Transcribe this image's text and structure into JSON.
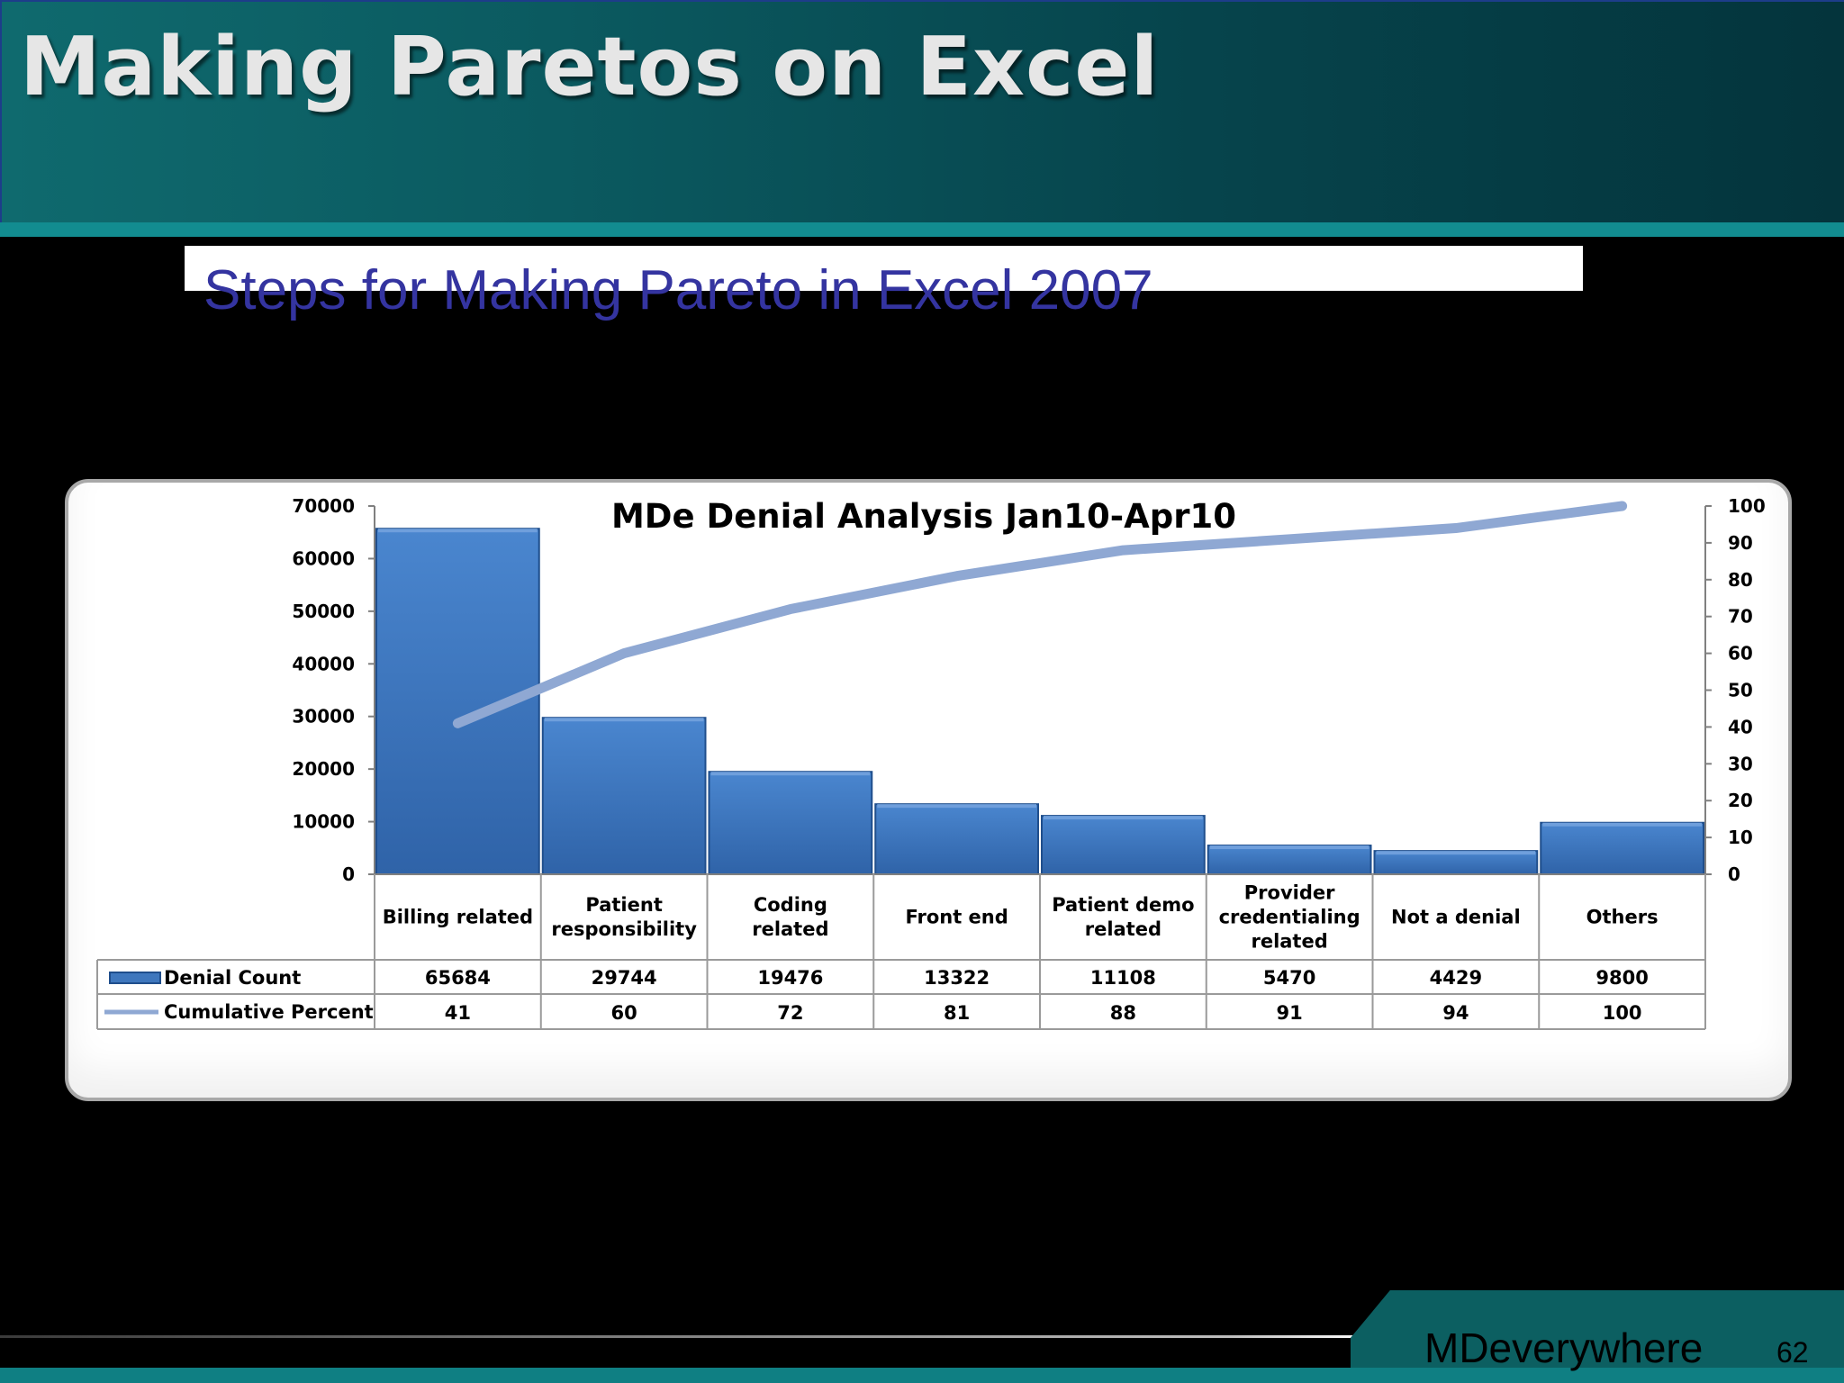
{
  "slide": {
    "title": "Making Paretos on Excel",
    "subtitle": "Steps for Making Pareto in Excel 2007",
    "brand": "MDeverywhere",
    "page_number": "62"
  },
  "colors": {
    "bar": "#3f77bd",
    "line": "#8fa8d3",
    "title_text": "#e6e6e6",
    "subtitle_text": "#3434a0",
    "header_teal": "#0b5a60"
  },
  "chart_data": {
    "type": "bar",
    "title": "MDe Denial Analysis Jan10-Apr10",
    "categories": [
      [
        "Billing related"
      ],
      [
        "Patient",
        "responsibility"
      ],
      [
        "Coding",
        "related"
      ],
      [
        "Front end"
      ],
      [
        "Patient demo",
        "related"
      ],
      [
        "Provider",
        "credentialing",
        "related"
      ],
      [
        "Not a denial"
      ],
      [
        "Others"
      ]
    ],
    "series": [
      {
        "name": "Denial Count",
        "type": "bar",
        "axis": "left",
        "values": [
          65684,
          29744,
          19476,
          13322,
          11108,
          5470,
          4429,
          9800
        ]
      },
      {
        "name": "Cumulative Percent",
        "type": "line",
        "axis": "right",
        "values": [
          41,
          60,
          72,
          81,
          88,
          91,
          94,
          100
        ]
      }
    ],
    "y_left": {
      "ylim": [
        0,
        70000
      ],
      "ticks": [
        0,
        10000,
        20000,
        30000,
        40000,
        50000,
        60000,
        70000
      ]
    },
    "y_right": {
      "ylim": [
        0,
        100
      ],
      "ticks": [
        0,
        10,
        20,
        30,
        40,
        50,
        60,
        70,
        80,
        90,
        100
      ]
    },
    "grid": false,
    "data_table": true
  }
}
